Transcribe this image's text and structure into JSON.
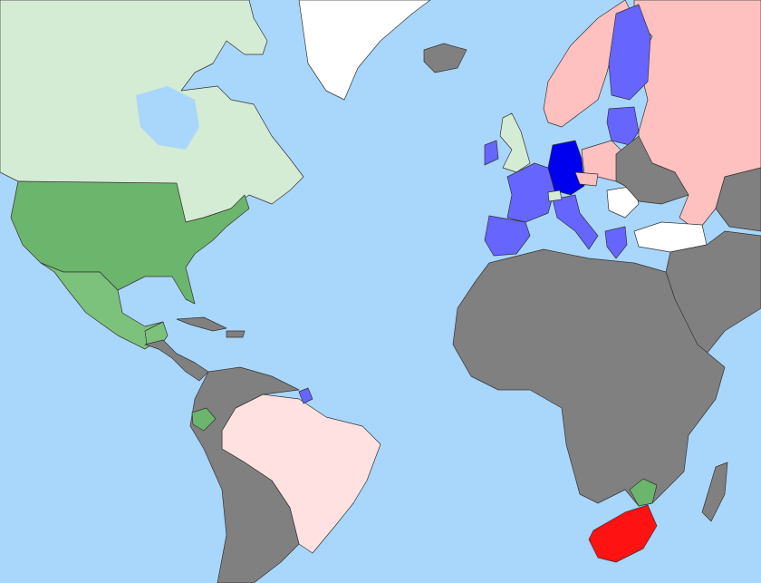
{
  "map": {
    "ocean_color": "#a9d6fb",
    "border_color": "#333333",
    "categories": {
      "light_green": "#d4ebd4",
      "green": "#6cb56c",
      "medium_green": "#7cc27c",
      "light_pink": "#ffe1e1",
      "pink": "#ffc0c0",
      "gray": "#808080",
      "blue": "#6666ff",
      "dark_blue": "#0000ee",
      "white": "#ffffff",
      "red": "#ff1212"
    }
  }
}
